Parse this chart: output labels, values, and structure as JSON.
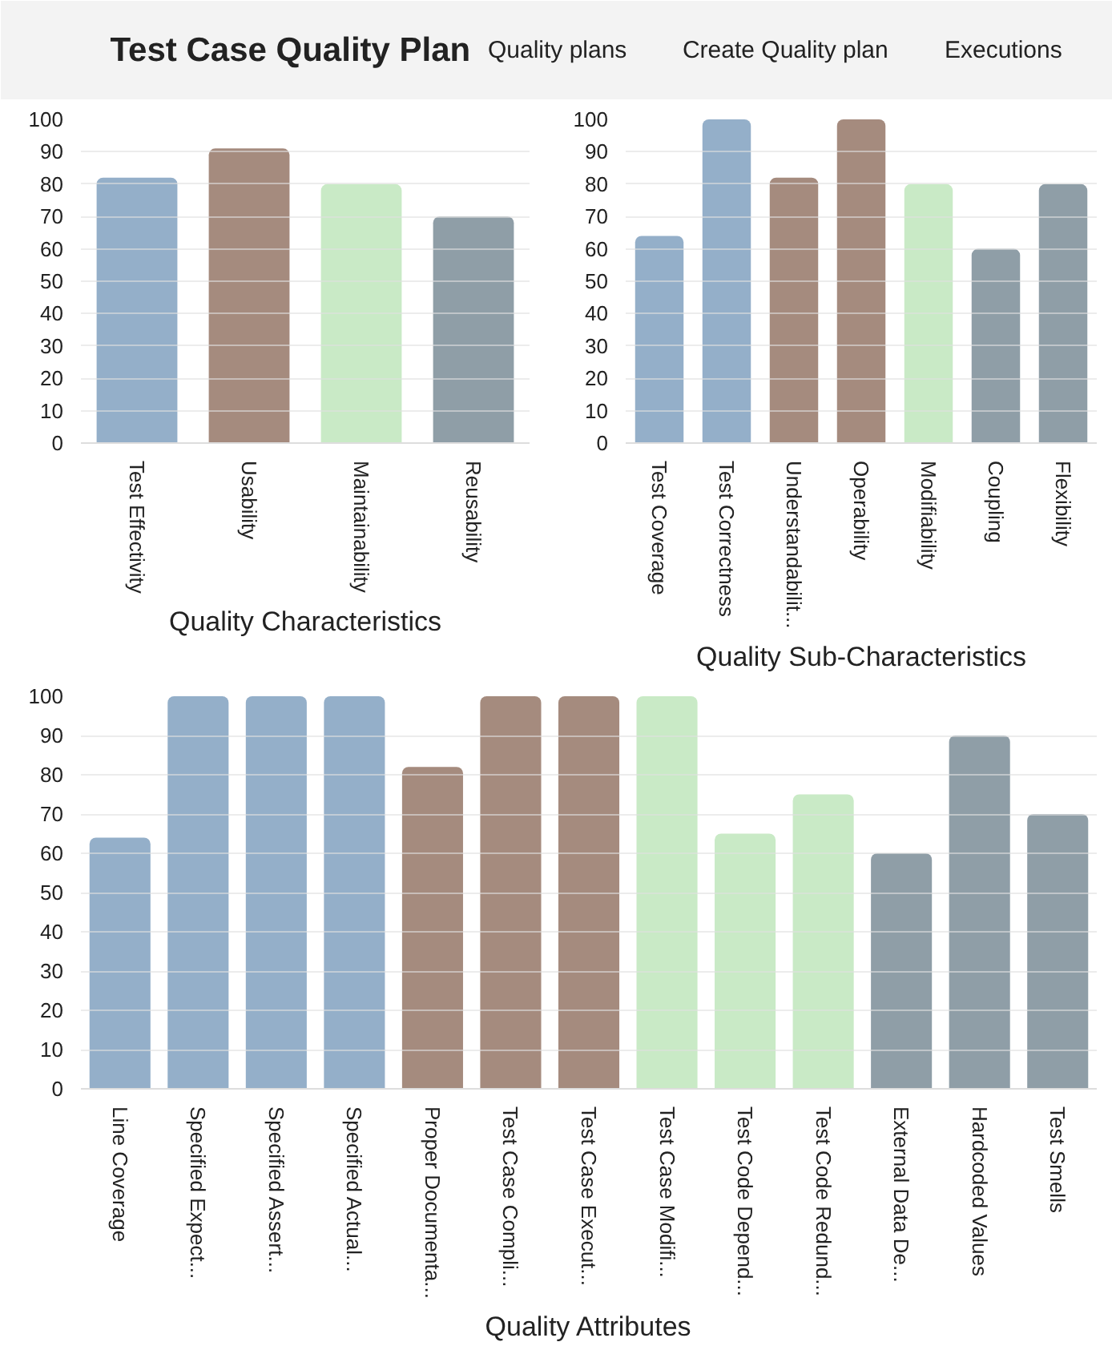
{
  "chart_data": [
    {
      "type": "other",
      "title": "Test Case Quality Plan",
      "annotations": [
        "Quality plans",
        "Create Quality plan",
        "Executions"
      ]
    },
    {
      "type": "bar",
      "xlabel": "Quality Characteristics",
      "categories": [
        "Test Effectivity",
        "Usability",
        "Maintainability",
        "Reusability"
      ],
      "values": [
        82,
        91,
        80,
        70
      ],
      "colors": [
        "#94afc9",
        "#a58b7e",
        "#c9eac6",
        "#8f9ea7"
      ],
      "ylim": [
        0,
        100
      ],
      "yticks": [
        0,
        10,
        20,
        30,
        40,
        50,
        60,
        70,
        80,
        90,
        100
      ],
      "grid": "y",
      "legend": false
    },
    {
      "type": "bar",
      "xlabel": "Quality Sub-Characteristics",
      "categories": [
        "Test Coverage",
        "Test Correctness",
        "Understandabilit...",
        "Operability",
        "Modifiability",
        "Coupling",
        "Flexibility"
      ],
      "values": [
        64,
        100,
        82,
        100,
        80,
        60,
        80
      ],
      "colors": [
        "#94afc9",
        "#94afc9",
        "#a58b7e",
        "#a58b7e",
        "#c9eac6",
        "#8f9ea7",
        "#8f9ea7"
      ],
      "ylim": [
        0,
        100
      ],
      "yticks": [
        0,
        10,
        20,
        30,
        40,
        50,
        60,
        70,
        80,
        90,
        100
      ],
      "grid": "y",
      "legend": false
    },
    {
      "type": "bar",
      "xlabel": "Quality Attributes",
      "categories": [
        "Line Coverage",
        "Specified Expect...",
        "Specified Assert...",
        "Specified Actual...",
        "Proper Documenta...",
        "Test Case Compli...",
        "Test Case Execut...",
        "Test Case Modifi...",
        "Test Code Depend...",
        "Test Code Redund...",
        "External Data De...",
        "Hardcoded Values",
        "Test Smells"
      ],
      "values": [
        64,
        100,
        100,
        100,
        82,
        100,
        100,
        100,
        65,
        75,
        60,
        90,
        70
      ],
      "colors": [
        "#94afc9",
        "#94afc9",
        "#94afc9",
        "#94afc9",
        "#a58b7e",
        "#a58b7e",
        "#a58b7e",
        "#c9eac6",
        "#c9eac6",
        "#c9eac6",
        "#8f9ea7",
        "#8f9ea7",
        "#8f9ea7"
      ],
      "ylim": [
        0,
        100
      ],
      "yticks": [
        0,
        10,
        20,
        30,
        40,
        50,
        60,
        70,
        80,
        90,
        100
      ],
      "grid": "y",
      "legend": false
    }
  ]
}
